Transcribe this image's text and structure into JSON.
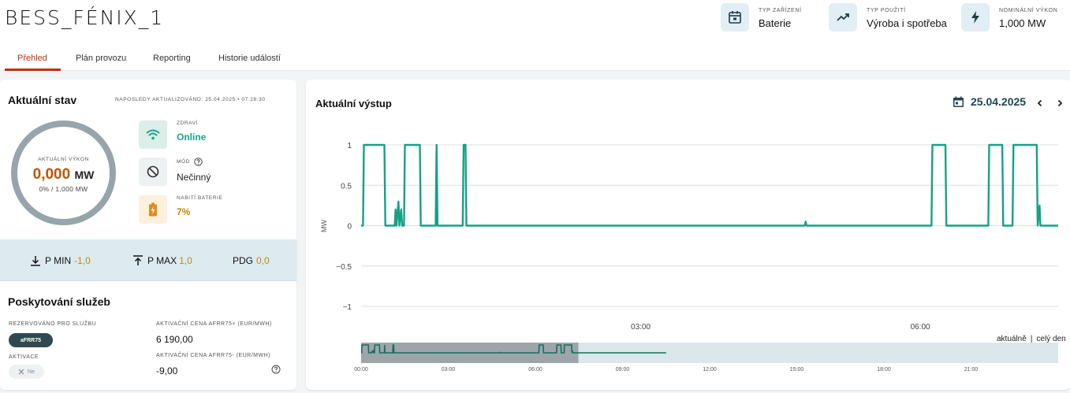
{
  "header": {
    "title": "BESS_FÉNIX_1",
    "meta": [
      {
        "label": "TYP ZAŘÍZENÍ",
        "value": "Baterie",
        "icon": "calendar-battery-icon"
      },
      {
        "label": "TYP POUŽITÍ",
        "value": "Výroba i spotřeba",
        "icon": "trending-up-icon"
      },
      {
        "label": "NOMINÁLNÍ VÝKON",
        "value": "1,000 MW",
        "icon": "bolt-icon"
      }
    ]
  },
  "tabs": [
    "Přehled",
    "Plán provozu",
    "Reporting",
    "Historie událostí"
  ],
  "status": {
    "title": "Aktuální stav",
    "updated": "NAPOSLEDY AKTUALIZOVÁNO: 25.04.2025 • 07:28:30",
    "power_label": "AKTUÁLNÍ VÝKON",
    "power_value": "0,000",
    "power_unit": "MW",
    "power_sub": "0% / 1,000 MW",
    "health_label": "ZDRAVÍ",
    "health_value": "Online",
    "mode_label": "MÓD",
    "mode_value": "Nečinný",
    "charge_label": "NABITÍ BATERIE",
    "charge_value": "7%"
  },
  "limits": {
    "pmin_label": "P MIN",
    "pmin_value": "-1,0",
    "pmax_label": "P MAX",
    "pmax_value": "1,0",
    "pdg_label": "PDG",
    "pdg_value": "0,0"
  },
  "services": {
    "title": "Poskytování služeb",
    "reserved_label": "REZERVOVÁNO PRO SLUŽBU",
    "reserved_chip": "aFRR75",
    "price_plus_label": "AKTIVAČNÍ CENA AFRR75+ (EUR/MWH)",
    "price_plus_value": "6 190,00",
    "activation_label": "AKTIVACE",
    "activation_chip": "Ne",
    "price_minus_label": "AKTIVAČNÍ CENA AFRR75- (EUR/MWH)",
    "price_minus_value": "-9,00"
  },
  "output": {
    "title": "Aktuální výstup",
    "date": "25.04.2025",
    "range_current": "aktuálně",
    "range_sep": "|",
    "range_full": "celý den"
  },
  "colors": {
    "accent": "#c03010",
    "series": "#16a085",
    "value_orange": "#b8570b",
    "limit_gold": "#c08a00"
  },
  "chart_data": {
    "type": "line",
    "ylabel": "MW",
    "ylim": [
      -1,
      1
    ],
    "y_ticks": [
      "1",
      "0.5",
      "0",
      "−0.5",
      "−1"
    ],
    "x_ticks": [
      "03:00",
      "06:00"
    ],
    "x_range_h": [
      0.0,
      7.48
    ],
    "series": [
      {
        "points": [
          [
            0.0,
            0.0
          ],
          [
            0.02,
            0.0
          ],
          [
            0.03,
            1.0
          ],
          [
            0.25,
            1.0
          ],
          [
            0.26,
            0.0
          ],
          [
            0.36,
            0.0
          ],
          [
            0.37,
            0.2
          ],
          [
            0.38,
            0.0
          ],
          [
            0.4,
            0.3
          ],
          [
            0.41,
            0.0
          ],
          [
            0.43,
            0.2
          ],
          [
            0.44,
            0.0
          ],
          [
            0.46,
            0.0
          ],
          [
            0.47,
            1.0
          ],
          [
            0.63,
            1.0
          ],
          [
            0.64,
            0.0
          ],
          [
            0.8,
            0.0
          ],
          [
            0.81,
            1.0
          ],
          [
            0.82,
            0.0
          ],
          [
            1.09,
            0.0
          ],
          [
            1.1,
            1.0
          ],
          [
            1.12,
            1.0
          ],
          [
            1.13,
            0.0
          ],
          [
            4.76,
            0.0
          ],
          [
            4.77,
            0.05
          ],
          [
            4.78,
            0.0
          ],
          [
            6.12,
            0.0
          ],
          [
            6.13,
            1.0
          ],
          [
            6.27,
            1.0
          ],
          [
            6.28,
            0.0
          ],
          [
            6.73,
            0.0
          ],
          [
            6.74,
            1.0
          ],
          [
            6.88,
            1.0
          ],
          [
            6.89,
            0.0
          ],
          [
            6.99,
            0.0
          ],
          [
            7.0,
            1.0
          ],
          [
            7.25,
            1.0
          ],
          [
            7.26,
            0.0
          ],
          [
            7.28,
            0.25
          ],
          [
            7.29,
            0.0
          ],
          [
            7.48,
            0.0
          ]
        ]
      }
    ],
    "navigator": {
      "x_ticks": [
        "00:00",
        "03:00",
        "06:00",
        "09:00",
        "12:00",
        "15:00",
        "18:00",
        "21:00"
      ],
      "selection_h": [
        0.0,
        7.48
      ],
      "data_end_h": 10.5
    }
  }
}
